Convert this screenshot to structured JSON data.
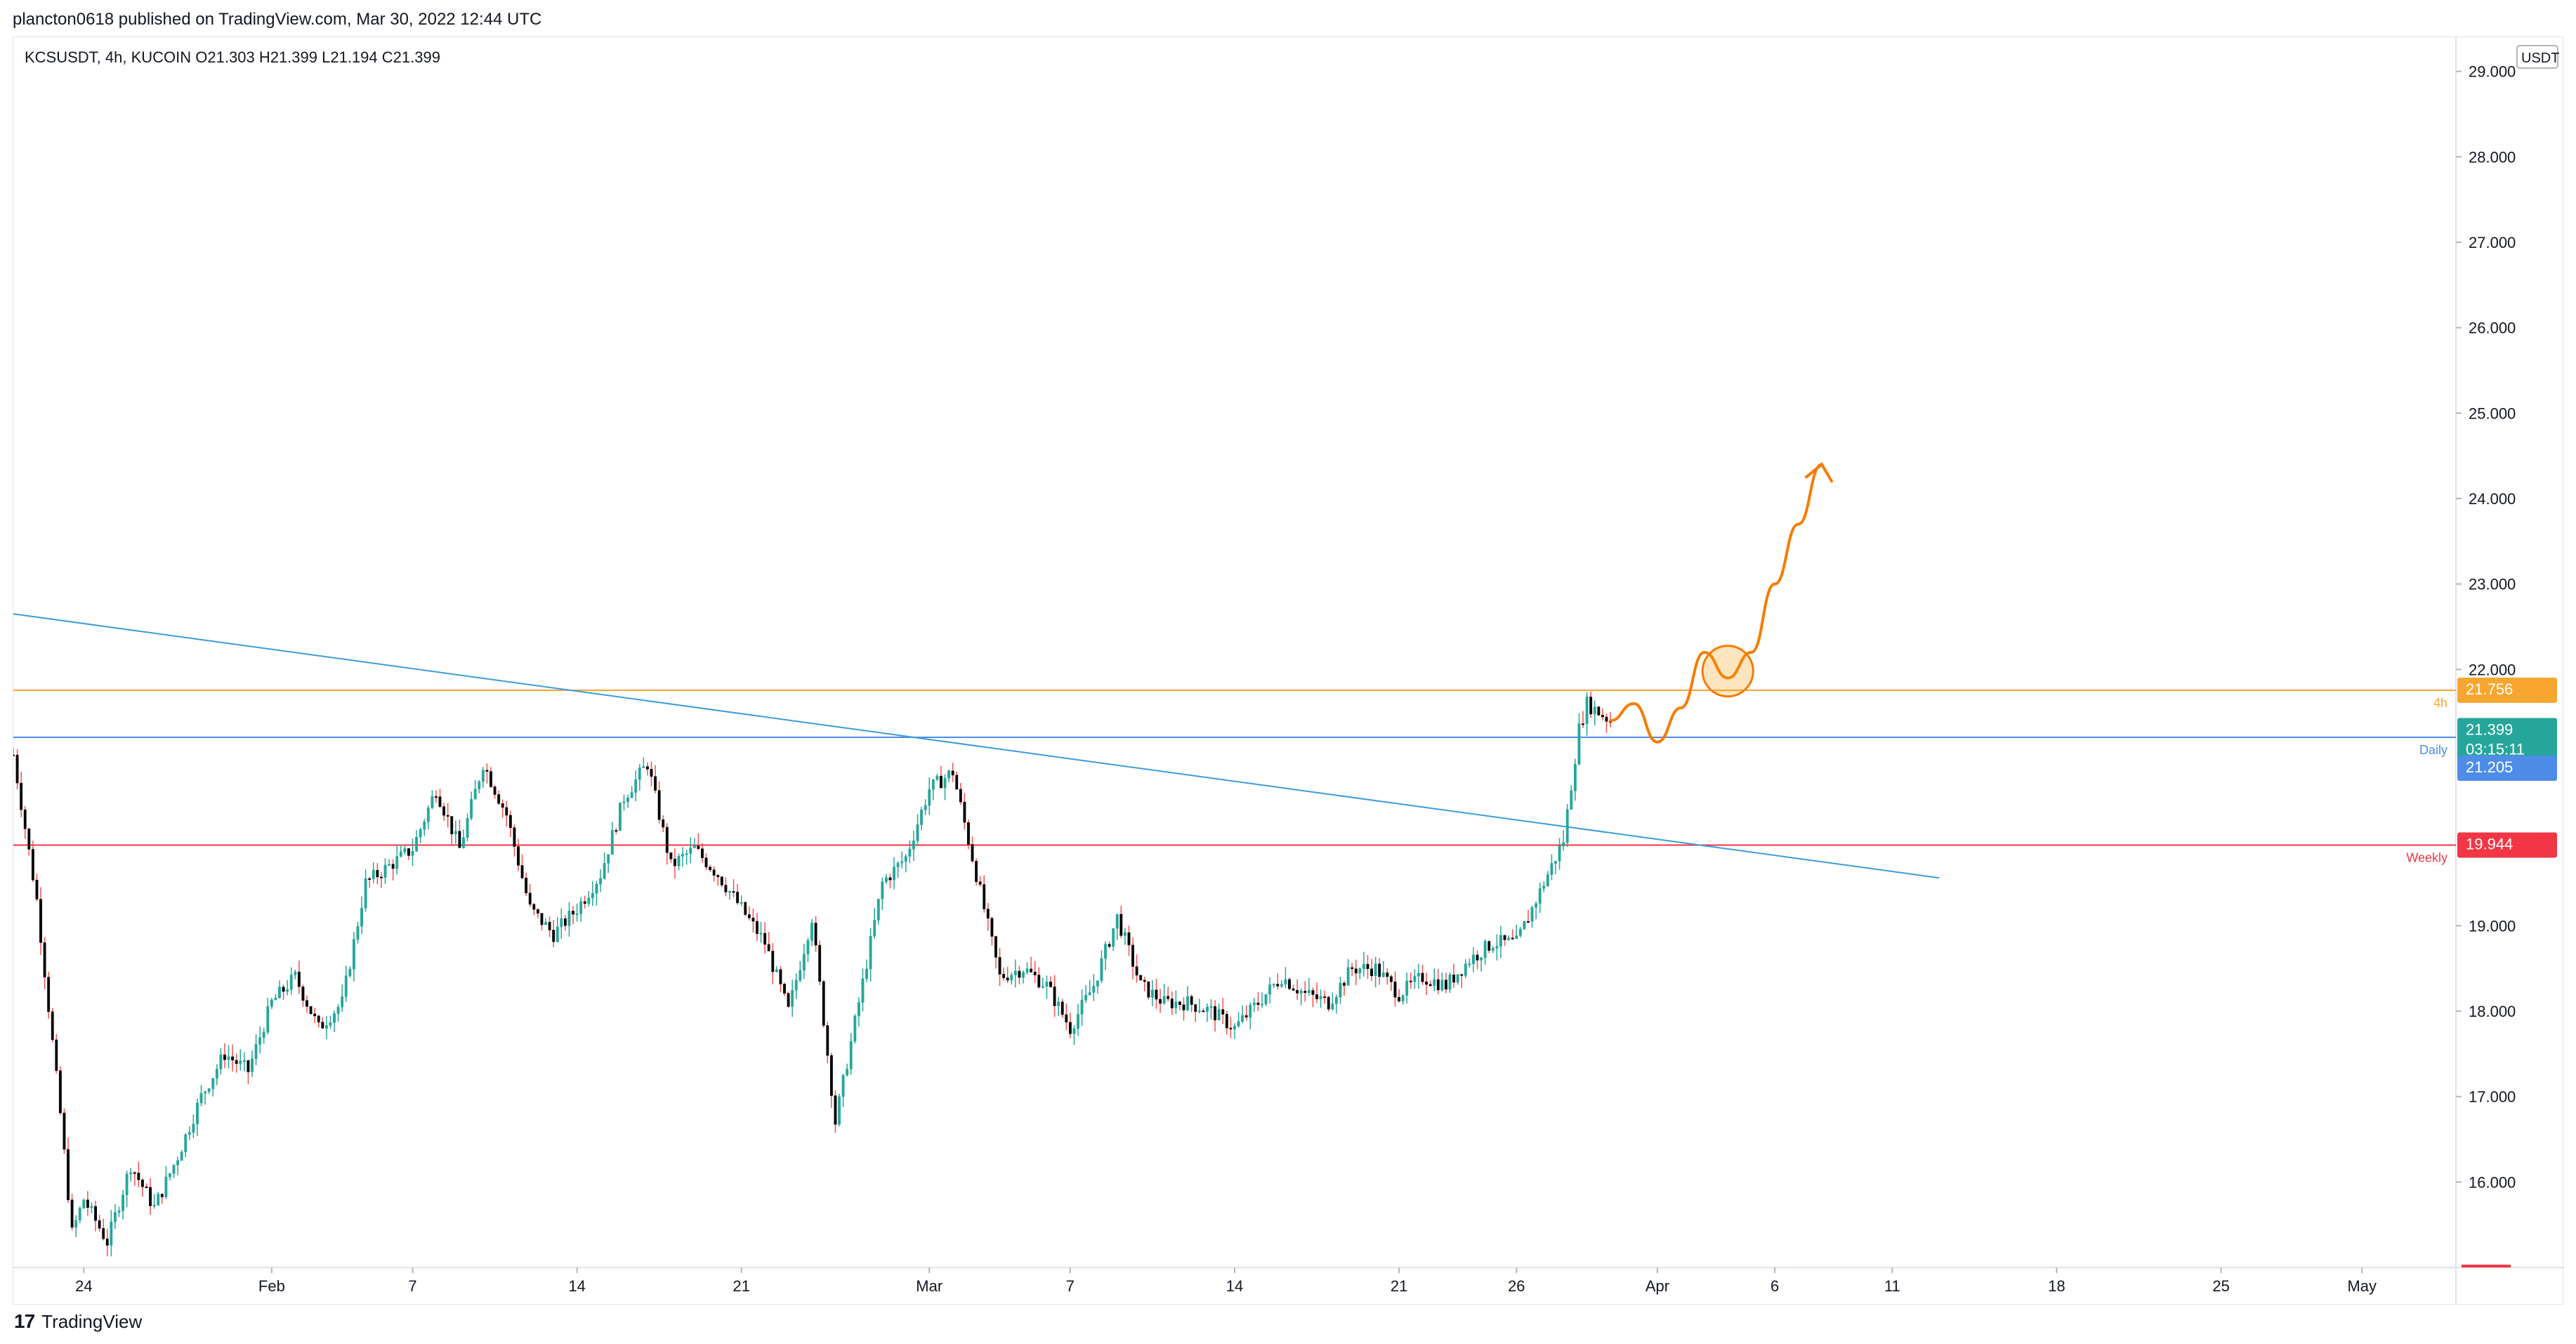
{
  "header": {
    "published_by": "plancton0618 published on TradingView.com, Mar 30, 2022 12:44 UTC",
    "symbol_line": "KCSUSDT, 4h, KUCOIN",
    "ohlc": {
      "o_label": "O",
      "o": "21.303",
      "h_label": "H",
      "h": "21.399",
      "l_label": "L",
      "l": "21.194",
      "c_label": "C",
      "c": "21.399"
    }
  },
  "footer": {
    "brand": "TradingView",
    "logo_text": "17"
  },
  "colors": {
    "up": "#26a69a",
    "down": "#ef5350",
    "candle_body": "#000000",
    "level_4h": "#f7a72f",
    "level_daily": "#4f8ce8",
    "level_weekly": "#f23645",
    "trendline": "#3c9bdc",
    "projection": "#f57c00",
    "last_price": "#26a69a",
    "axis_text": "#131722",
    "grid": "#f0f3fa"
  },
  "chart_data": {
    "type": "candlestick",
    "symbol": "KCSUSDT",
    "interval": "4h",
    "exchange": "KUCOIN",
    "currency_label": "USDT",
    "y_range": [
      15.0,
      29.4
    ],
    "y_ticks": [
      "29.000",
      "28.000",
      "27.000",
      "26.000",
      "25.000",
      "24.000",
      "23.000",
      "22.000",
      "19.000",
      "18.000",
      "17.000",
      "16.000"
    ],
    "x_range": [
      "2022-01-21",
      "2022-05-05"
    ],
    "x_ticks": [
      {
        "label": "24",
        "date": "2022-01-24"
      },
      {
        "label": "Feb",
        "date": "2022-02-01"
      },
      {
        "label": "7",
        "date": "2022-02-07"
      },
      {
        "label": "14",
        "date": "2022-02-14"
      },
      {
        "label": "21",
        "date": "2022-02-21"
      },
      {
        "label": "Mar",
        "date": "2022-03-01"
      },
      {
        "label": "7",
        "date": "2022-03-07"
      },
      {
        "label": "14",
        "date": "2022-03-14"
      },
      {
        "label": "21",
        "date": "2022-03-21"
      },
      {
        "label": "26",
        "date": "2022-03-26"
      },
      {
        "label": "Apr",
        "date": "2022-04-01"
      },
      {
        "label": "6",
        "date": "2022-04-06"
      },
      {
        "label": "11",
        "date": "2022-04-11"
      },
      {
        "label": "18",
        "date": "2022-04-18"
      },
      {
        "label": "25",
        "date": "2022-04-25"
      },
      {
        "label": "May",
        "date": "2022-05-01"
      }
    ],
    "price_path": [
      [
        "2022-01-21",
        21.0
      ],
      [
        "2022-01-22",
        19.3
      ],
      [
        "2022-01-23",
        16.8
      ],
      [
        "2022-01-23T12:00",
        15.4
      ],
      [
        "2022-01-24",
        15.8
      ],
      [
        "2022-01-25",
        15.3
      ],
      [
        "2022-01-26",
        16.2
      ],
      [
        "2022-01-27",
        15.7
      ],
      [
        "2022-01-28",
        16.3
      ],
      [
        "2022-01-29",
        17.0
      ],
      [
        "2022-01-30",
        17.5
      ],
      [
        "2022-01-31",
        17.3
      ],
      [
        "2022-02-01",
        18.1
      ],
      [
        "2022-02-02",
        18.4
      ],
      [
        "2022-02-03",
        17.8
      ],
      [
        "2022-02-04",
        18.1
      ],
      [
        "2022-02-05",
        19.5
      ],
      [
        "2022-02-06",
        19.7
      ],
      [
        "2022-02-07",
        19.9
      ],
      [
        "2022-02-08",
        20.6
      ],
      [
        "2022-02-09",
        19.9
      ],
      [
        "2022-02-10",
        20.9
      ],
      [
        "2022-02-11",
        20.3
      ],
      [
        "2022-02-12",
        19.2
      ],
      [
        "2022-02-13",
        18.9
      ],
      [
        "2022-02-14",
        19.2
      ],
      [
        "2022-02-15",
        19.6
      ],
      [
        "2022-02-16",
        20.5
      ],
      [
        "2022-02-17",
        20.9
      ],
      [
        "2022-02-18",
        19.7
      ],
      [
        "2022-02-19",
        19.9
      ],
      [
        "2022-02-20",
        19.6
      ],
      [
        "2022-02-21",
        19.2
      ],
      [
        "2022-02-22",
        18.8
      ],
      [
        "2022-02-23",
        18.0
      ],
      [
        "2022-02-24",
        19.1
      ],
      [
        "2022-02-25",
        16.7
      ],
      [
        "2022-02-26",
        18.1
      ],
      [
        "2022-02-27",
        19.5
      ],
      [
        "2022-02-28",
        19.8
      ],
      [
        "2022-03-01",
        20.6
      ],
      [
        "2022-03-02",
        20.8
      ],
      [
        "2022-03-03",
        19.6
      ],
      [
        "2022-03-04",
        18.4
      ],
      [
        "2022-03-05",
        18.5
      ],
      [
        "2022-03-06",
        18.3
      ],
      [
        "2022-03-07",
        17.8
      ],
      [
        "2022-03-08",
        18.3
      ],
      [
        "2022-03-09",
        19.1
      ],
      [
        "2022-03-10",
        18.3
      ],
      [
        "2022-03-11",
        18.1
      ],
      [
        "2022-03-12",
        18.1
      ],
      [
        "2022-03-13",
        18.0
      ],
      [
        "2022-03-14",
        17.8
      ],
      [
        "2022-03-15",
        18.1
      ],
      [
        "2022-03-16",
        18.4
      ],
      [
        "2022-03-17",
        18.2
      ],
      [
        "2022-03-18",
        18.1
      ],
      [
        "2022-03-19",
        18.5
      ],
      [
        "2022-03-20",
        18.5
      ],
      [
        "2022-03-21",
        18.2
      ],
      [
        "2022-03-22",
        18.4
      ],
      [
        "2022-03-23",
        18.3
      ],
      [
        "2022-03-24",
        18.6
      ],
      [
        "2022-03-25",
        18.8
      ],
      [
        "2022-03-26",
        18.8
      ],
      [
        "2022-03-27",
        19.4
      ],
      [
        "2022-03-28",
        20.0
      ],
      [
        "2022-03-28T16:00",
        21.3
      ],
      [
        "2022-03-29",
        21.6
      ],
      [
        "2022-03-29T12:00",
        21.5
      ],
      [
        "2022-03-30",
        21.399
      ]
    ],
    "levels": [
      {
        "name": "4h",
        "price": 21.756
      },
      {
        "name": "Daily",
        "price": 21.205
      },
      {
        "name": "Weekly",
        "price": 19.944
      }
    ],
    "last_price": {
      "price": "21.399",
      "countdown": "03:15:11"
    },
    "trendline": {
      "from": [
        "2022-01-21",
        22.65
      ],
      "to": [
        "2022-04-13",
        19.56
      ]
    },
    "projection": {
      "points": [
        [
          "2022-03-30",
          21.4
        ],
        [
          "2022-03-31",
          21.6
        ],
        [
          "2022-04-01",
          21.15
        ],
        [
          "2022-04-02",
          21.55
        ],
        [
          "2022-04-03",
          22.2
        ],
        [
          "2022-04-04",
          21.9
        ],
        [
          "2022-04-05",
          22.2
        ],
        [
          "2022-04-06",
          23.0
        ],
        [
          "2022-04-07",
          23.7
        ],
        [
          "2022-04-08",
          24.4
        ]
      ],
      "circle_center": [
        "2022-04-04",
        21.98
      ]
    }
  }
}
